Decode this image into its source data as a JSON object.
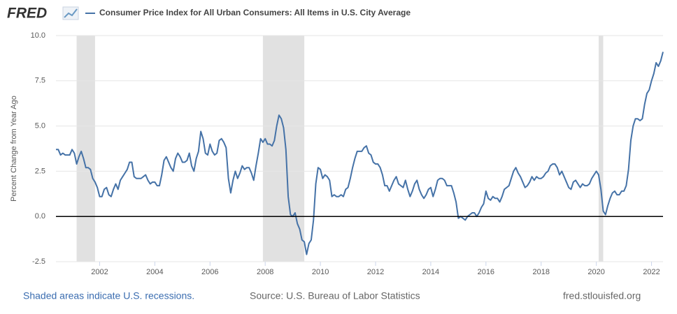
{
  "logo": "FRED",
  "chart_data": {
    "type": "line",
    "ylabel": "Percent Change from Year Ago",
    "footer": {
      "note": "Shaded areas indicate U.S. recessions.",
      "source": "Source: U.S. Bureau of Labor Statistics",
      "site": "fred.stlouisfed.org"
    },
    "recessions": [
      [
        "2001-03",
        "2001-11"
      ],
      [
        "2007-12",
        "2009-06"
      ],
      [
        "2020-02",
        "2020-04"
      ]
    ],
    "recession_color": "#e1e1e1",
    "xlim": [
      "2000-06",
      "2022-06"
    ],
    "xticks": [
      2002,
      2004,
      2006,
      2008,
      2010,
      2012,
      2014,
      2016,
      2018,
      2020,
      2022
    ],
    "ylim": [
      -2.5,
      10
    ],
    "yticks": [
      -2.5,
      {
        "value": 0,
        "label": "0.0"
      },
      2.5,
      {
        "value": 5,
        "label": "5.0"
      },
      7.5,
      {
        "value": 10,
        "label": "10.0"
      }
    ],
    "grid": true,
    "x": [
      "2000-06",
      "2000-07",
      "2000-08",
      "2000-09",
      "2000-10",
      "2000-11",
      "2000-12",
      "2001-01",
      "2001-02",
      "2001-03",
      "2001-04",
      "2001-05",
      "2001-06",
      "2001-07",
      "2001-08",
      "2001-09",
      "2001-10",
      "2001-11",
      "2001-12",
      "2002-01",
      "2002-02",
      "2002-03",
      "2002-04",
      "2002-05",
      "2002-06",
      "2002-07",
      "2002-08",
      "2002-09",
      "2002-10",
      "2002-11",
      "2002-12",
      "2003-01",
      "2003-02",
      "2003-03",
      "2003-04",
      "2003-05",
      "2003-06",
      "2003-07",
      "2003-08",
      "2003-09",
      "2003-10",
      "2003-11",
      "2003-12",
      "2004-01",
      "2004-02",
      "2004-03",
      "2004-04",
      "2004-05",
      "2004-06",
      "2004-07",
      "2004-08",
      "2004-09",
      "2004-10",
      "2004-11",
      "2004-12",
      "2005-01",
      "2005-02",
      "2005-03",
      "2005-04",
      "2005-05",
      "2005-06",
      "2005-07",
      "2005-08",
      "2005-09",
      "2005-10",
      "2005-11",
      "2005-12",
      "2006-01",
      "2006-02",
      "2006-03",
      "2006-04",
      "2006-05",
      "2006-06",
      "2006-07",
      "2006-08",
      "2006-09",
      "2006-10",
      "2006-11",
      "2006-12",
      "2007-01",
      "2007-02",
      "2007-03",
      "2007-04",
      "2007-05",
      "2007-06",
      "2007-07",
      "2007-08",
      "2007-09",
      "2007-10",
      "2007-11",
      "2007-12",
      "2008-01",
      "2008-02",
      "2008-03",
      "2008-04",
      "2008-05",
      "2008-06",
      "2008-07",
      "2008-08",
      "2008-09",
      "2008-10",
      "2008-11",
      "2008-12",
      "2009-01",
      "2009-02",
      "2009-03",
      "2009-04",
      "2009-05",
      "2009-06",
      "2009-07",
      "2009-08",
      "2009-09",
      "2009-10",
      "2009-11",
      "2009-12",
      "2010-01",
      "2010-02",
      "2010-03",
      "2010-04",
      "2010-05",
      "2010-06",
      "2010-07",
      "2010-08",
      "2010-09",
      "2010-10",
      "2010-11",
      "2010-12",
      "2011-01",
      "2011-02",
      "2011-03",
      "2011-04",
      "2011-05",
      "2011-06",
      "2011-07",
      "2011-08",
      "2011-09",
      "2011-10",
      "2011-11",
      "2011-12",
      "2012-01",
      "2012-02",
      "2012-03",
      "2012-04",
      "2012-05",
      "2012-06",
      "2012-07",
      "2012-08",
      "2012-09",
      "2012-10",
      "2012-11",
      "2012-12",
      "2013-01",
      "2013-02",
      "2013-03",
      "2013-04",
      "2013-05",
      "2013-06",
      "2013-07",
      "2013-08",
      "2013-09",
      "2013-10",
      "2013-11",
      "2013-12",
      "2014-01",
      "2014-02",
      "2014-03",
      "2014-04",
      "2014-05",
      "2014-06",
      "2014-07",
      "2014-08",
      "2014-09",
      "2014-10",
      "2014-11",
      "2014-12",
      "2015-01",
      "2015-02",
      "2015-03",
      "2015-04",
      "2015-05",
      "2015-06",
      "2015-07",
      "2015-08",
      "2015-09",
      "2015-10",
      "2015-11",
      "2015-12",
      "2016-01",
      "2016-02",
      "2016-03",
      "2016-04",
      "2016-05",
      "2016-06",
      "2016-07",
      "2016-08",
      "2016-09",
      "2016-10",
      "2016-11",
      "2016-12",
      "2017-01",
      "2017-02",
      "2017-03",
      "2017-04",
      "2017-05",
      "2017-06",
      "2017-07",
      "2017-08",
      "2017-09",
      "2017-10",
      "2017-11",
      "2017-12",
      "2018-01",
      "2018-02",
      "2018-03",
      "2018-04",
      "2018-05",
      "2018-06",
      "2018-07",
      "2018-08",
      "2018-09",
      "2018-10",
      "2018-11",
      "2018-12",
      "2019-01",
      "2019-02",
      "2019-03",
      "2019-04",
      "2019-05",
      "2019-06",
      "2019-07",
      "2019-08",
      "2019-09",
      "2019-10",
      "2019-11",
      "2019-12",
      "2020-01",
      "2020-02",
      "2020-03",
      "2020-04",
      "2020-05",
      "2020-06",
      "2020-07",
      "2020-08",
      "2020-09",
      "2020-10",
      "2020-11",
      "2020-12",
      "2021-01",
      "2021-02",
      "2021-03",
      "2021-04",
      "2021-05",
      "2021-06",
      "2021-07",
      "2021-08",
      "2021-09",
      "2021-10",
      "2021-11",
      "2021-12",
      "2022-01",
      "2022-02",
      "2022-03",
      "2022-04",
      "2022-05",
      "2022-06"
    ],
    "series": [
      {
        "name": "Consumer Price Index for All Urban Consumers: All Items in U.S. City Average",
        "color": "#4572a7",
        "values": [
          3.7,
          3.7,
          3.4,
          3.5,
          3.4,
          3.4,
          3.4,
          3.7,
          3.5,
          2.9,
          3.3,
          3.6,
          3.2,
          2.7,
          2.7,
          2.6,
          2.1,
          1.9,
          1.6,
          1.1,
          1.1,
          1.5,
          1.6,
          1.2,
          1.1,
          1.5,
          1.8,
          1.5,
          2.0,
          2.2,
          2.4,
          2.6,
          3.0,
          3.0,
          2.2,
          2.1,
          2.1,
          2.1,
          2.2,
          2.3,
          2.0,
          1.8,
          1.9,
          1.9,
          1.7,
          1.7,
          2.3,
          3.1,
          3.3,
          3.0,
          2.7,
          2.5,
          3.2,
          3.5,
          3.3,
          3.0,
          3.0,
          3.1,
          3.5,
          2.8,
          2.5,
          3.2,
          3.6,
          4.7,
          4.3,
          3.5,
          3.4,
          4.0,
          3.6,
          3.4,
          3.5,
          4.2,
          4.3,
          4.1,
          3.8,
          2.1,
          1.3,
          2.0,
          2.5,
          2.1,
          2.4,
          2.8,
          2.6,
          2.7,
          2.7,
          2.4,
          2.0,
          2.8,
          3.5,
          4.3,
          4.1,
          4.3,
          4.0,
          4.0,
          3.9,
          4.2,
          5.0,
          5.6,
          5.4,
          4.9,
          3.7,
          1.1,
          0.1,
          0.0,
          0.2,
          -0.4,
          -0.7,
          -1.3,
          -1.4,
          -2.1,
          -1.5,
          -1.3,
          -0.2,
          1.8,
          2.7,
          2.6,
          2.1,
          2.3,
          2.2,
          2.0,
          1.1,
          1.2,
          1.1,
          1.1,
          1.2,
          1.1,
          1.5,
          1.6,
          2.1,
          2.7,
          3.2,
          3.6,
          3.6,
          3.6,
          3.8,
          3.9,
          3.5,
          3.4,
          3.0,
          2.9,
          2.9,
          2.7,
          2.3,
          1.7,
          1.7,
          1.4,
          1.7,
          2.0,
          2.2,
          1.8,
          1.7,
          1.6,
          2.0,
          1.5,
          1.1,
          1.4,
          1.8,
          2.0,
          1.5,
          1.2,
          1.0,
          1.2,
          1.5,
          1.6,
          1.1,
          1.5,
          2.0,
          2.1,
          2.1,
          2.0,
          1.7,
          1.7,
          1.7,
          1.3,
          0.8,
          -0.1,
          0.0,
          -0.1,
          -0.2,
          0.0,
          0.1,
          0.2,
          0.2,
          0.0,
          0.2,
          0.5,
          0.7,
          1.4,
          1.0,
          0.9,
          1.1,
          1.0,
          1.0,
          0.8,
          1.1,
          1.5,
          1.6,
          1.7,
          2.1,
          2.5,
          2.7,
          2.4,
          2.2,
          1.9,
          1.6,
          1.7,
          1.9,
          2.2,
          2.0,
          2.2,
          2.1,
          2.1,
          2.2,
          2.4,
          2.5,
          2.8,
          2.9,
          2.9,
          2.7,
          2.3,
          2.5,
          2.2,
          1.9,
          1.6,
          1.5,
          1.9,
          2.0,
          1.8,
          1.6,
          1.8,
          1.7,
          1.7,
          1.8,
          2.1,
          2.3,
          2.5,
          2.3,
          1.5,
          0.3,
          0.1,
          0.6,
          1.0,
          1.3,
          1.4,
          1.2,
          1.2,
          1.4,
          1.4,
          1.7,
          2.6,
          4.2,
          5.0,
          5.4,
          5.4,
          5.3,
          5.4,
          6.2,
          6.8,
          7.0,
          7.5,
          7.9,
          8.5,
          8.3,
          8.6,
          9.1
        ]
      }
    ]
  }
}
